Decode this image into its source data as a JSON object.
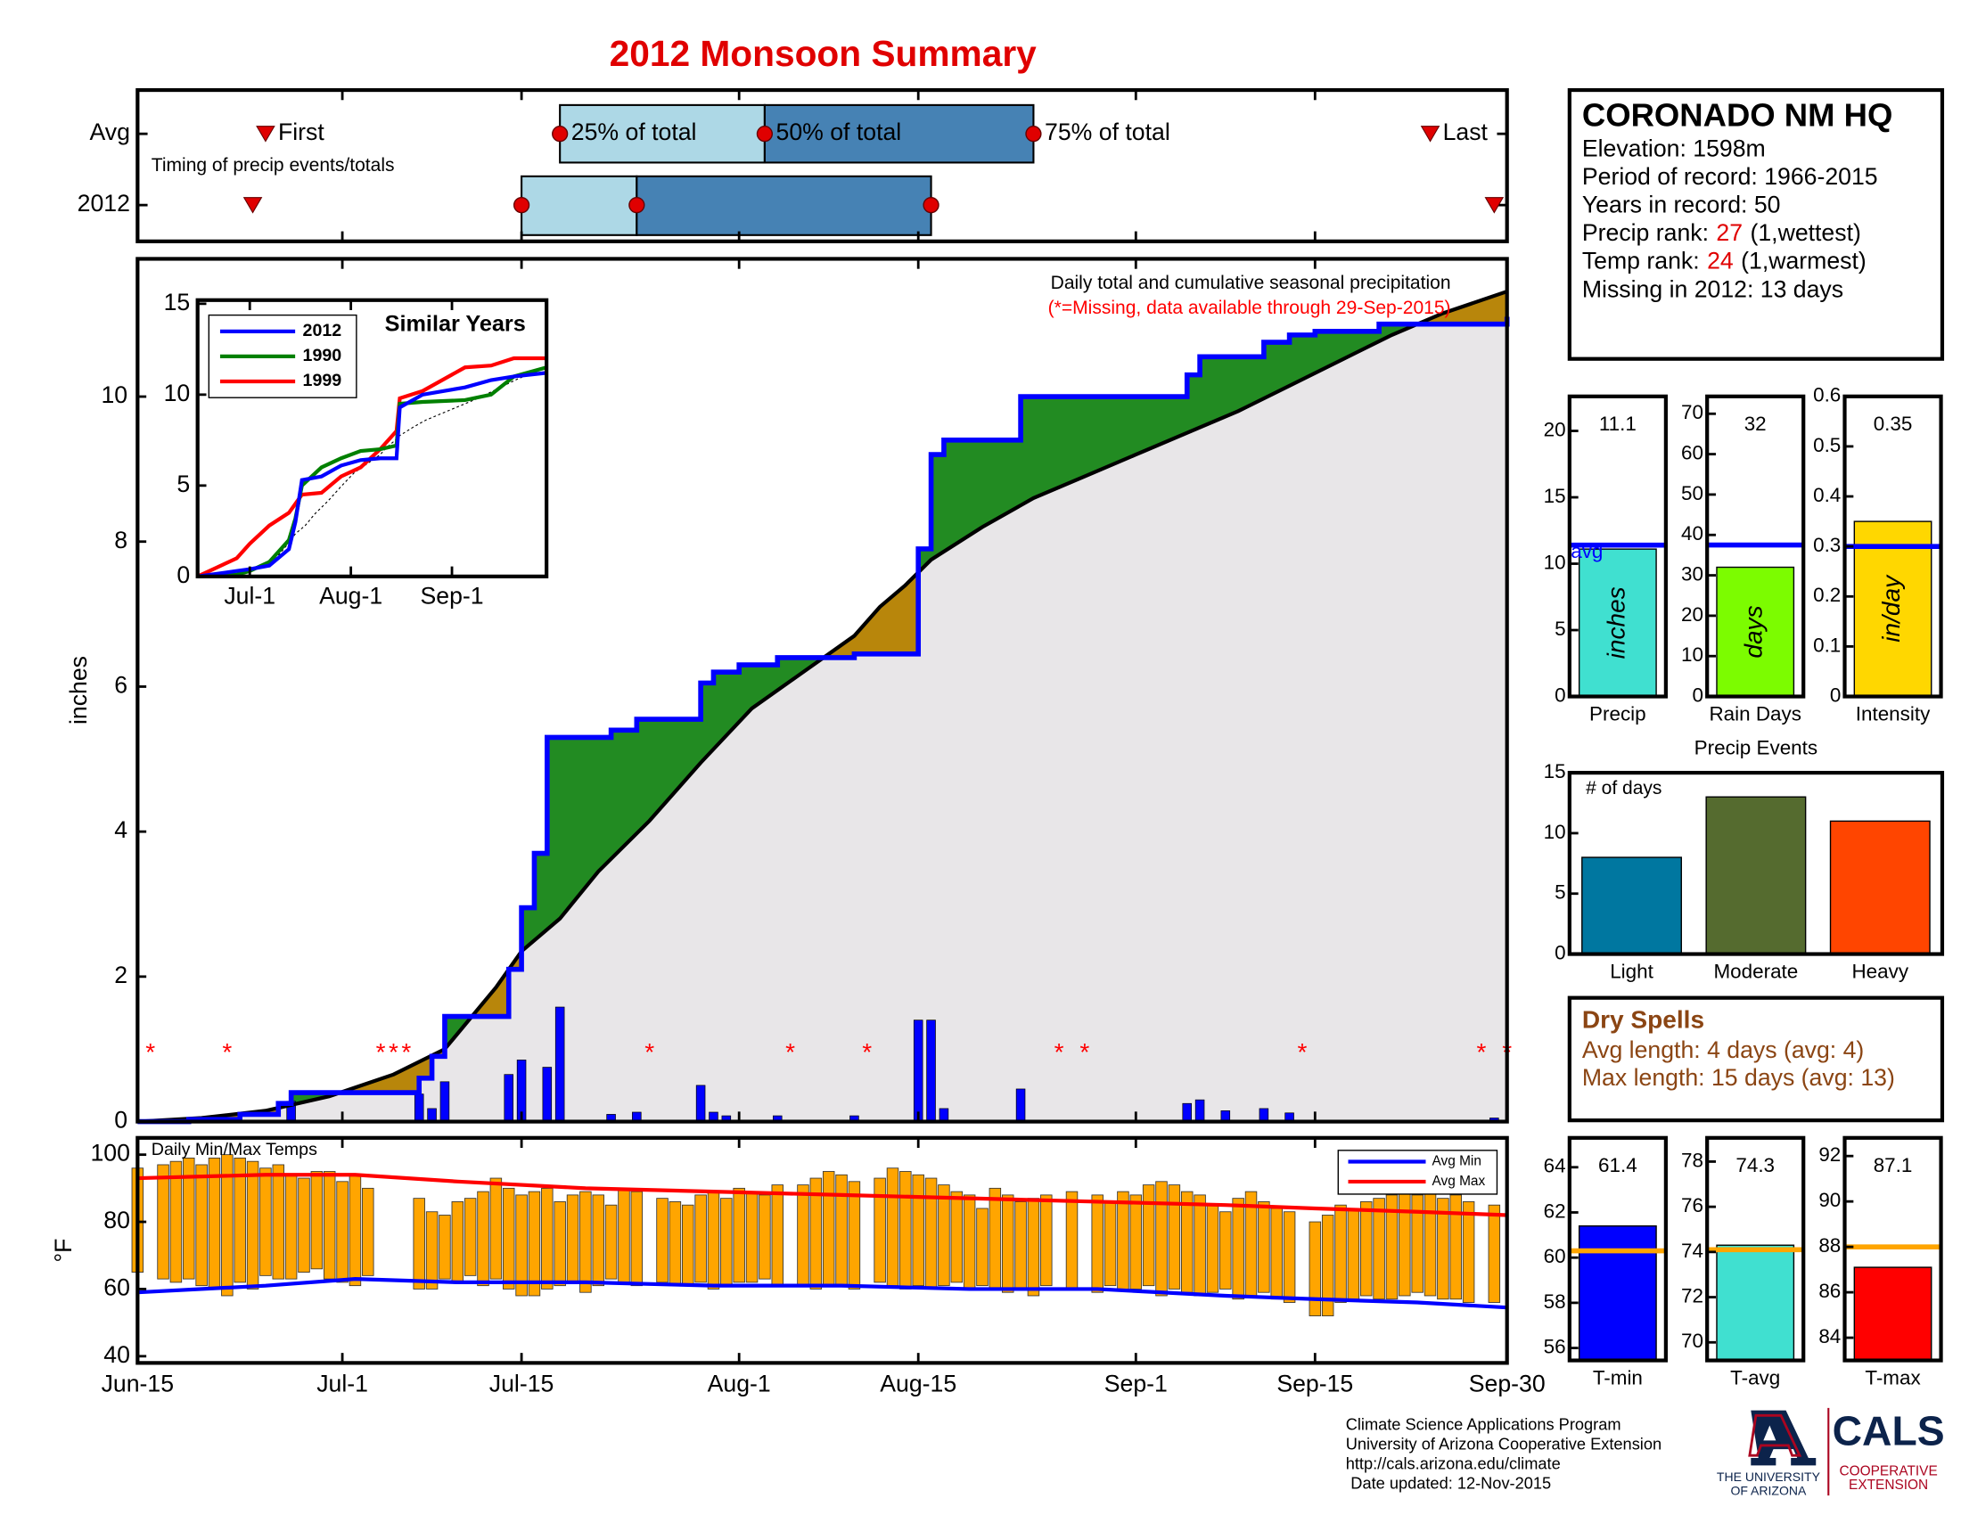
{
  "title": "2012 Monsoon Summary",
  "station": {
    "name": "CORONADO NM HQ",
    "lines": [
      "Elevation: 1598m",
      "Period of record: 1966-2015",
      "Years in record: 50"
    ],
    "precip_rank": {
      "label": "Precip rank:",
      "value": 27,
      "note": "(1,wettest)"
    },
    "temp_rank": {
      "label": "Temp rank:",
      "value": 24,
      "note": "(1,warmest)"
    },
    "missing": "Missing in 2012: 13 days",
    "rank_color": "#e00000"
  },
  "dry_spells": {
    "title": "Dry Spells",
    "lines": [
      "Avg length: 4 days (avg: 4)",
      "Max length: 15 days (avg: 13)"
    ],
    "color": "#8b4513"
  },
  "footer": {
    "lines": [
      "Climate Science Applications Program",
      "University of Arizona Cooperative Extension",
      "http://cals.arizona.edu/climate",
      "Date updated: 12-Nov-2015"
    ],
    "logos": {
      "university": [
        "THE UNIVERSITY",
        "OF ARIZONA"
      ],
      "cals": "CALS",
      "extension": [
        "COOPERATIVE",
        "EXTENSION"
      ]
    }
  },
  "chart_data": [
    {
      "type": "timeline",
      "note": "Timing of precip events/totals",
      "labels": [
        "First",
        "25% of total",
        "50% of total",
        "75% of total",
        "Last"
      ],
      "xlim": [
        0,
        107
      ],
      "xticks": [
        0,
        16,
        30,
        47,
        61,
        78,
        92,
        107
      ],
      "series": [
        {
          "name": "Avg",
          "values": [
            10,
            33,
            49,
            70,
            101
          ]
        },
        {
          "name": "2012",
          "values": [
            9,
            30,
            39,
            62,
            106
          ]
        }
      ],
      "colors": [
        "#add8e6",
        "#4682b4"
      ],
      "marker_color": "#e00000"
    },
    {
      "type": "cumulative",
      "title": "Daily total and cumulative seasonal precipitation",
      "subtitle": "(*=Missing, data available through 29-Sep-2015)",
      "ylabel": "inches",
      "xlim": [
        0,
        107
      ],
      "xticks": [
        0,
        16,
        30,
        47,
        61,
        78,
        92,
        107
      ],
      "ylim": [
        0,
        11.9
      ],
      "yticks": [
        0,
        2,
        4,
        6,
        8,
        10
      ],
      "series": [
        {
          "name": "2012",
          "color": "#0000ff",
          "step": true,
          "x": [
            0,
            4,
            8,
            11,
            12,
            22,
            23,
            24,
            29,
            30,
            31,
            32,
            37,
            39,
            44,
            45,
            47,
            50,
            56,
            61,
            62,
            63,
            69,
            82,
            83,
            88,
            90,
            92,
            97,
            107
          ],
          "values": [
            0,
            0.03,
            0.1,
            0.25,
            0.4,
            0.6,
            0.9,
            1.45,
            2.1,
            2.95,
            3.7,
            5.3,
            5.4,
            5.55,
            6.05,
            6.2,
            6.3,
            6.4,
            6.45,
            7.9,
            9.2,
            9.4,
            10.0,
            10.3,
            10.55,
            10.75,
            10.85,
            10.9,
            11.0,
            11.1
          ]
        },
        {
          "color": "#000000",
          "x": [
            0,
            5,
            10,
            15,
            20,
            24,
            28,
            30,
            33,
            36,
            40,
            44,
            48,
            52,
            56,
            58,
            60,
            62,
            66,
            70,
            74,
            78,
            82,
            86,
            90,
            94,
            98,
            102,
            107
          ],
          "values": [
            0,
            0.05,
            0.15,
            0.35,
            0.65,
            1.0,
            1.85,
            2.35,
            2.8,
            3.45,
            4.15,
            4.95,
            5.7,
            6.2,
            6.7,
            7.1,
            7.4,
            7.75,
            8.2,
            8.6,
            8.9,
            9.2,
            9.5,
            9.8,
            10.15,
            10.5,
            10.85,
            11.15,
            11.45
          ]
        }
      ],
      "above_color": "#228b22",
      "below_color": "#b8860b",
      "base_color": "#e8e6e8",
      "daily": {
        "color": "#0000ff",
        "x": [
          12,
          22,
          23,
          24,
          29,
          30,
          32,
          33,
          37,
          39,
          44,
          45,
          46,
          50,
          56,
          61,
          62,
          63,
          69,
          82,
          83,
          85,
          88,
          90,
          106
        ],
        "values": [
          0.28,
          0.38,
          0.18,
          0.55,
          0.65,
          0.85,
          0.75,
          1.58,
          0.1,
          0.13,
          0.5,
          0.13,
          0.08,
          0.08,
          0.08,
          1.4,
          1.4,
          0.18,
          0.45,
          0.25,
          0.3,
          0.15,
          0.18,
          0.12,
          0.05
        ]
      },
      "missing": {
        "marker": "*",
        "color": "#ff0000",
        "x": [
          1,
          7,
          19,
          20,
          21,
          40,
          51,
          57,
          72,
          74,
          91,
          105,
          107
        ]
      }
    },
    {
      "type": "line",
      "title": "Similar Years",
      "xlim": [
        0,
        107
      ],
      "xticks": [
        {
          "value": 16,
          "label": "Jul-1"
        },
        {
          "value": 47,
          "label": "Aug-1"
        },
        {
          "value": 78,
          "label": "Sep-1"
        }
      ],
      "ylim": [
        0,
        15.2
      ],
      "yticks": [
        0,
        5,
        10,
        15
      ],
      "x": [
        0,
        12,
        16,
        22,
        28,
        30,
        32,
        38,
        44,
        50,
        56,
        61,
        62,
        69,
        82,
        90,
        97,
        107
      ],
      "series": [
        {
          "name": "2012",
          "color": "#0000ff",
          "values": [
            0,
            0.3,
            0.4,
            0.6,
            1.5,
            3,
            5.3,
            5.5,
            6.1,
            6.4,
            6.5,
            6.5,
            9.3,
            10,
            10.4,
            10.8,
            11,
            11.2
          ]
        },
        {
          "name": "1990",
          "color": "#008000",
          "values": [
            0,
            0.1,
            0.3,
            0.8,
            2,
            3.2,
            5,
            6,
            6.5,
            6.9,
            7,
            7.2,
            9.5,
            9.6,
            9.7,
            10,
            11,
            11.5
          ]
        },
        {
          "name": "1999",
          "color": "#ff0000",
          "values": [
            0,
            1,
            1.8,
            2.8,
            3.5,
            4,
            4.5,
            4.6,
            5.5,
            6,
            7,
            8,
            9.8,
            10.2,
            11.5,
            11.6,
            12,
            12
          ]
        }
      ]
    },
    {
      "type": "range-bar",
      "title": "Daily Min/Max Temps",
      "ylabel": "°F",
      "xlim": [
        0,
        107
      ],
      "xticks": [
        {
          "value": 0,
          "label": "Jun-15"
        },
        {
          "value": 16,
          "label": "Jul-1"
        },
        {
          "value": 30,
          "label": "Jul-15"
        },
        {
          "value": 47,
          "label": "Aug-1"
        },
        {
          "value": 61,
          "label": "Aug-15"
        },
        {
          "value": 78,
          "label": "Sep-1"
        },
        {
          "value": 92,
          "label": "Sep-15"
        },
        {
          "value": 107,
          "label": "Sep-30"
        }
      ],
      "ylim": [
        38,
        105
      ],
      "yticks": [
        40,
        60,
        80,
        100
      ],
      "color": "#ffa500",
      "legend": "upper right",
      "x": [
        0,
        1,
        2,
        3,
        4,
        5,
        6,
        7,
        8,
        9,
        10,
        11,
        12,
        13,
        14,
        15,
        16,
        17,
        18,
        19,
        20,
        21,
        22,
        23,
        24,
        25,
        26,
        27,
        28,
        29,
        30,
        31,
        32,
        33,
        34,
        35,
        36,
        37,
        38,
        39,
        40,
        41,
        42,
        43,
        44,
        45,
        46,
        47,
        48,
        49,
        50,
        51,
        52,
        53,
        54,
        55,
        56,
        57,
        58,
        59,
        60,
        61,
        62,
        63,
        64,
        65,
        66,
        67,
        68,
        69,
        70,
        71,
        72,
        73,
        74,
        75,
        76,
        77,
        78,
        79,
        80,
        81,
        82,
        83,
        84,
        85,
        86,
        87,
        88,
        89,
        90,
        91,
        92,
        93,
        94,
        95,
        96,
        97,
        98,
        99,
        100,
        101,
        102,
        103,
        104,
        105,
        106,
        107
      ],
      "max": [
        96,
        null,
        97,
        98,
        99,
        97,
        99,
        100,
        99,
        98,
        96,
        97,
        94,
        93,
        95,
        95,
        92,
        94,
        90,
        null,
        null,
        null,
        87,
        83,
        82,
        86,
        87,
        89,
        93,
        90,
        88,
        89,
        90,
        86,
        88,
        89,
        88,
        85,
        90,
        89,
        null,
        87,
        86,
        85,
        88,
        89,
        87,
        90,
        89,
        88,
        91,
        null,
        91,
        93,
        95,
        94,
        92,
        null,
        93,
        96,
        95,
        94,
        93,
        91,
        89,
        88,
        84,
        90,
        88,
        86,
        87,
        88,
        null,
        89,
        null,
        88,
        86,
        89,
        88,
        91,
        92,
        91,
        89,
        88,
        85,
        83,
        87,
        89,
        86,
        84,
        83,
        null,
        80,
        82,
        85,
        84,
        86,
        87,
        88,
        89,
        88,
        89,
        87,
        88,
        86,
        null,
        85,
        null
      ],
      "min": [
        65,
        null,
        63,
        62,
        63,
        61,
        60,
        58,
        62,
        60,
        64,
        63,
        63,
        65,
        66,
        63,
        62,
        61,
        64,
        null,
        null,
        null,
        60,
        60,
        63,
        62,
        64,
        61,
        63,
        60,
        58,
        58,
        60,
        61,
        62,
        59,
        61,
        63,
        62,
        61,
        null,
        62,
        61,
        61,
        62,
        60,
        61,
        62,
        62,
        63,
        61,
        null,
        61,
        60,
        61,
        61,
        60,
        null,
        62,
        61,
        60,
        61,
        60,
        61,
        62,
        60,
        61,
        60,
        59,
        60,
        58,
        61,
        null,
        60,
        null,
        59,
        61,
        60,
        60,
        61,
        58,
        60,
        59,
        58,
        59,
        60,
        57,
        58,
        59,
        57,
        56,
        null,
        52,
        52,
        56,
        57,
        58,
        57,
        57,
        58,
        59,
        58,
        57,
        57,
        56,
        null,
        56,
        null
      ],
      "series": [
        {
          "name": "Avg Min",
          "color": "#0000ff",
          "x": [
            0,
            10,
            17,
            25,
            35,
            45,
            55,
            65,
            75,
            85,
            92,
            100,
            107
          ],
          "values": [
            59,
            61,
            63,
            62,
            62,
            61,
            61,
            60,
            60,
            58,
            57,
            56,
            54.5
          ]
        },
        {
          "name": "Avg Max",
          "color": "#ff0000",
          "x": [
            0,
            10,
            17,
            25,
            35,
            45,
            55,
            65,
            75,
            85,
            92,
            100,
            107
          ],
          "values": [
            93,
            94,
            94,
            92,
            90,
            89,
            88,
            87,
            86,
            85,
            84,
            83,
            82
          ]
        }
      ]
    },
    {
      "type": "bar",
      "categories": [
        "Precip"
      ],
      "values": [
        11.1
      ],
      "show_values": true,
      "unit": "inches",
      "color": "#40e0d0",
      "avg": 11.4,
      "avg_label": "avg",
      "avg_color": "#0000ff",
      "ylim": [
        0,
        22.6
      ],
      "yticks": [
        0,
        5,
        10,
        15,
        20
      ]
    },
    {
      "type": "bar",
      "categories": [
        "Rain Days"
      ],
      "values": [
        32
      ],
      "show_values": true,
      "unit": "days",
      "color": "#7cfc00",
      "avg": 37.5,
      "avg_color": "#0000ff",
      "ylim": [
        0,
        74.3
      ],
      "yticks": [
        0,
        10,
        20,
        30,
        40,
        50,
        60,
        70
      ]
    },
    {
      "type": "bar",
      "categories": [
        "Intensity"
      ],
      "values": [
        0.35
      ],
      "show_values": true,
      "unit": "in/day",
      "color": "#ffd700",
      "avg": 0.3,
      "avg_color": "#0000ff",
      "ylim": [
        0,
        0.6
      ],
      "yticks": [
        0,
        0.1,
        0.2,
        0.3,
        0.4,
        0.5,
        0.6
      ]
    },
    {
      "type": "bar",
      "title": "Precip Events",
      "ylabel": "# of days",
      "categories": [
        "Light",
        "Moderate",
        "Heavy"
      ],
      "values": [
        8,
        13,
        11
      ],
      "colors": [
        "#0077a0",
        "#556b2f",
        "#ff4500"
      ],
      "ylim": [
        0,
        15
      ],
      "yticks": [
        0,
        5,
        10,
        15
      ]
    },
    {
      "type": "bar",
      "categories": [
        "T-min"
      ],
      "values": [
        61.4
      ],
      "show_values": true,
      "color": "#0000ff",
      "avg": 60.3,
      "avg_color": "#ffa500",
      "ylim": [
        55.45,
        65.3
      ],
      "yticks": [
        56,
        58,
        60,
        62,
        64
      ]
    },
    {
      "type": "bar",
      "categories": [
        "T-avg"
      ],
      "values": [
        74.3
      ],
      "show_values": true,
      "color": "#40e0d0",
      "avg": 74.1,
      "avg_color": "#ffa500",
      "ylim": [
        69.2,
        79.05
      ],
      "yticks": [
        70,
        72,
        74,
        76,
        78
      ]
    },
    {
      "type": "bar",
      "categories": [
        "T-max"
      ],
      "values": [
        87.1
      ],
      "show_values": true,
      "color": "#ff0000",
      "avg": 88.0,
      "avg_color": "#ffa500",
      "ylim": [
        83.0,
        92.8
      ],
      "yticks": [
        84,
        86,
        88,
        90,
        92
      ]
    }
  ]
}
